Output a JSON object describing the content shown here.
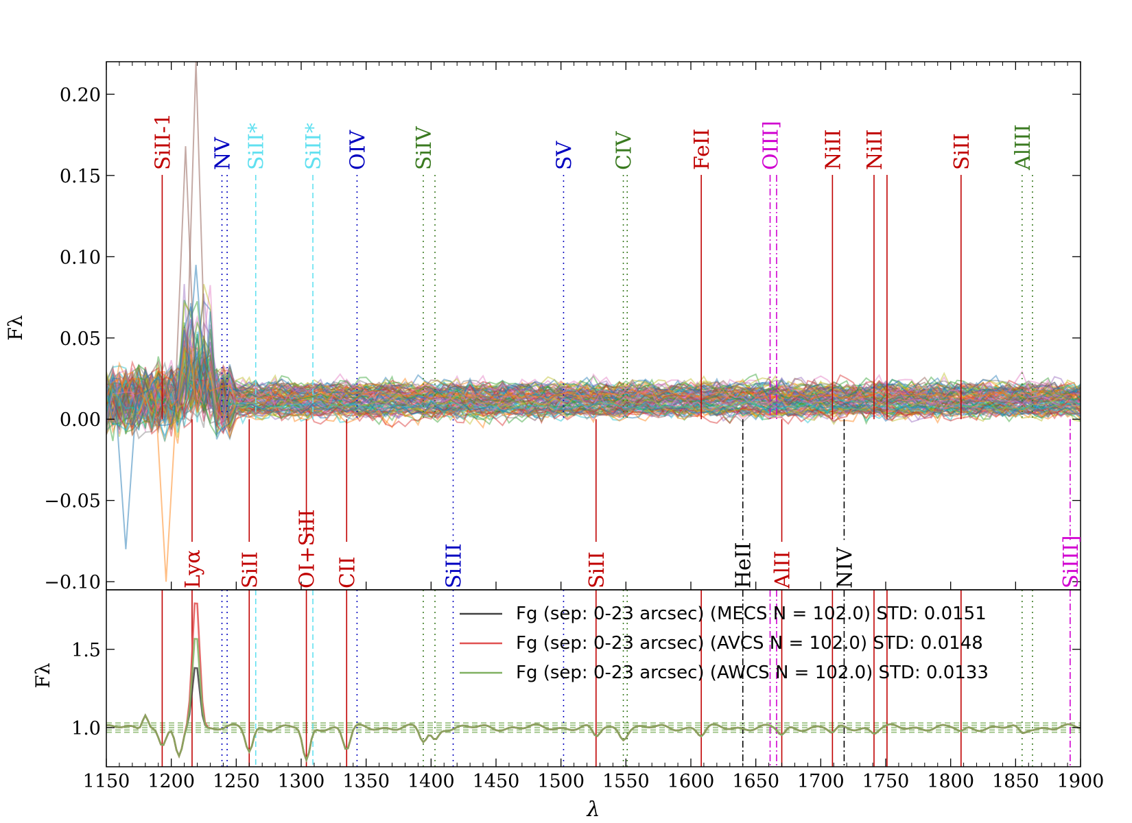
{
  "chart_data": {
    "type": "line",
    "xlabel": "λ",
    "ylabel_top": "Fλ",
    "ylabel_bottom": "Fλ",
    "xlim": [
      1150,
      1900
    ],
    "xticks": [
      1150,
      1200,
      1250,
      1300,
      1350,
      1400,
      1450,
      1500,
      1550,
      1600,
      1650,
      1700,
      1750,
      1800,
      1850,
      1900
    ],
    "top_panel": {
      "ylim": [
        -0.105,
        0.22
      ],
      "yticks": [
        -0.1,
        -0.05,
        0.0,
        0.05,
        0.1,
        0.15,
        0.2
      ],
      "ytick_labels": [
        "−0.10",
        "−0.05",
        "0.00",
        "0.05",
        "0.10",
        "0.15",
        "0.20"
      ],
      "description_series_count": 102
    },
    "bottom_panel": {
      "ylim": [
        0.75,
        1.88
      ],
      "yticks": [
        1.0,
        1.5
      ],
      "ytick_labels": [
        "1.0",
        "1.5"
      ],
      "series": [
        {
          "name": "Fg (sep: 0-23 arcsec)  (MECS N = 102.0) STD: 0.0151",
          "color": "#404040"
        },
        {
          "name": "Fg (sep: 0-23 arcsec)  (AVCS N = 102.0) STD: 0.0148",
          "color": "#e05050"
        },
        {
          "name": "Fg (sep: 0-23 arcsec)  (AWCS N = 102.0) STD: 0.0133",
          "color": "#7fb060"
        }
      ],
      "peak_values": {
        "MECS": 1.42,
        "AVCS": 1.88,
        "AWCS": 1.66
      },
      "peak_x": 1219
    },
    "lines": [
      {
        "label": "SiII-1",
        "x": [
          1193
        ],
        "color": "#c00000",
        "style": "solid",
        "pos": "top"
      },
      {
        "label": "Lyα",
        "x": [
          1216
        ],
        "color": "#c00000",
        "style": "solid",
        "pos": "bottom"
      },
      {
        "label": "NV",
        "x": [
          1239,
          1243
        ],
        "color": "#0000c0",
        "style": "dotted",
        "pos": "top"
      },
      {
        "label": "SiII",
        "x": [
          1260
        ],
        "color": "#c00000",
        "style": "solid",
        "pos": "bottom"
      },
      {
        "label": "SiII*",
        "x": [
          1265
        ],
        "color": "#60e0f0",
        "style": "dashed",
        "pos": "top"
      },
      {
        "label": "OI+SiII",
        "x": [
          1304
        ],
        "color": "#c00000",
        "style": "solid",
        "pos": "bottom"
      },
      {
        "label": "SiII*",
        "x": [
          1309
        ],
        "color": "#60e0f0",
        "style": "dashed",
        "pos": "top"
      },
      {
        "label": "CII",
        "x": [
          1335
        ],
        "color": "#c00000",
        "style": "solid",
        "pos": "bottom"
      },
      {
        "label": "OIV",
        "x": [
          1343
        ],
        "color": "#0000c0",
        "style": "dotted",
        "pos": "top"
      },
      {
        "label": "SiIV",
        "x": [
          1394,
          1403
        ],
        "color": "#3a7a20",
        "style": "dotted",
        "pos": "top"
      },
      {
        "label": "SiIII",
        "x": [
          1417
        ],
        "color": "#0000c0",
        "style": "dotted",
        "pos": "bottom"
      },
      {
        "label": "SV",
        "x": [
          1502
        ],
        "color": "#0000c0",
        "style": "dotted",
        "pos": "top"
      },
      {
        "label": "SiII",
        "x": [
          1527
        ],
        "color": "#c00000",
        "style": "solid",
        "pos": "bottom"
      },
      {
        "label": "CIV",
        "x": [
          1548,
          1551
        ],
        "color": "#3a7a20",
        "style": "dotted",
        "pos": "top"
      },
      {
        "label": "FeII",
        "x": [
          1608
        ],
        "color": "#c00000",
        "style": "solid",
        "pos": "top"
      },
      {
        "label": "HeII",
        "x": [
          1640
        ],
        "color": "#000000",
        "style": "dashdot",
        "pos": "bottom"
      },
      {
        "label": "OIII]",
        "x": [
          1661,
          1666
        ],
        "color": "#d000d0",
        "style": "dashdot",
        "pos": "top"
      },
      {
        "label": "AlII",
        "x": [
          1670
        ],
        "color": "#c00000",
        "style": "solid",
        "pos": "bottom"
      },
      {
        "label": "NiII",
        "x": [
          1709
        ],
        "color": "#c00000",
        "style": "solid",
        "pos": "top"
      },
      {
        "label": "NIV",
        "x": [
          1718
        ],
        "color": "#000000",
        "style": "dashdot",
        "pos": "bottom"
      },
      {
        "label": "NiII",
        "x": [
          1741,
          1751
        ],
        "color": "#c00000",
        "style": "solid",
        "pos": "top"
      },
      {
        "label": "SiII",
        "x": [
          1808
        ],
        "color": "#c00000",
        "style": "solid",
        "pos": "top"
      },
      {
        "label": "AlIII",
        "x": [
          1855,
          1863
        ],
        "color": "#3a7a20",
        "style": "dotted",
        "pos": "top"
      },
      {
        "label": "SiIII]",
        "x": [
          1892
        ],
        "color": "#d000d0",
        "style": "dashdot",
        "pos": "bottom"
      }
    ]
  }
}
